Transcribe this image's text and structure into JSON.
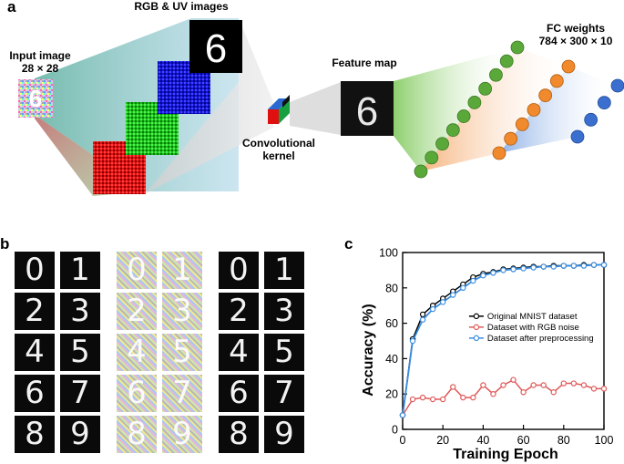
{
  "panel_a": {
    "letter": "a",
    "input_label_line1": "Input image",
    "input_label_line2": "28 × 28",
    "rgbuv_label": "RGB & UV images",
    "kernel_label_line1": "Convolutional",
    "kernel_label_line2": "kernel",
    "feature_label": "Feature map",
    "fc_label_line1": "FC weights",
    "fc_label_line2": "784 × 300 × 10",
    "digit": "6",
    "colors": {
      "red": "#e01010",
      "green": "#19c319",
      "blue": "#1414d8",
      "orange": "#f08a2c",
      "node_green": "#5aa83a",
      "node_blue": "#3a6fd0"
    }
  },
  "panel_b": {
    "letter": "b",
    "digits": [
      "0",
      "1",
      "2",
      "3",
      "4",
      "5",
      "6",
      "7",
      "8",
      "9"
    ]
  },
  "panel_c": {
    "letter": "c",
    "chart_data": {
      "type": "line",
      "xlabel": "Training Epoch",
      "ylabel": "Accuracy (%)",
      "xlim": [
        0,
        100
      ],
      "ylim": [
        0,
        100
      ],
      "xticks": [
        0,
        20,
        40,
        60,
        80,
        100
      ],
      "yticks": [
        0,
        20,
        40,
        60,
        80,
        100
      ],
      "legend_position": "middle-right",
      "series": [
        {
          "name": "Original MNIST dataset",
          "color": "#000000",
          "x": [
            0,
            5,
            10,
            15,
            20,
            25,
            30,
            35,
            40,
            45,
            50,
            55,
            60,
            65,
            70,
            75,
            80,
            85,
            90,
            95,
            100
          ],
          "y": [
            8,
            51,
            65,
            70,
            74,
            78,
            82,
            86,
            88,
            89,
            90.5,
            91,
            91.5,
            92,
            92,
            92.5,
            92.5,
            92.5,
            93,
            93,
            93
          ]
        },
        {
          "name": "Dataset with RGB noise",
          "color": "#e05a5a",
          "x": [
            0,
            5,
            10,
            15,
            20,
            25,
            30,
            35,
            40,
            45,
            50,
            55,
            60,
            65,
            70,
            75,
            80,
            85,
            90,
            95,
            100
          ],
          "y": [
            8,
            17,
            18,
            17,
            17,
            24,
            18,
            18,
            25,
            20,
            25,
            28,
            21,
            25,
            25,
            21,
            26,
            26,
            25,
            23,
            23
          ]
        },
        {
          "name": "Dataset after preprocessing",
          "color": "#3a8de0",
          "x": [
            0,
            5,
            10,
            15,
            20,
            25,
            30,
            35,
            40,
            45,
            50,
            55,
            60,
            65,
            70,
            75,
            80,
            85,
            90,
            95,
            100
          ],
          "y": [
            8,
            50,
            62,
            68,
            72,
            76,
            80,
            84,
            87,
            88.5,
            90,
            90.5,
            91,
            91.5,
            92,
            92,
            92.5,
            92.5,
            92.5,
            93,
            93
          ]
        }
      ]
    }
  }
}
